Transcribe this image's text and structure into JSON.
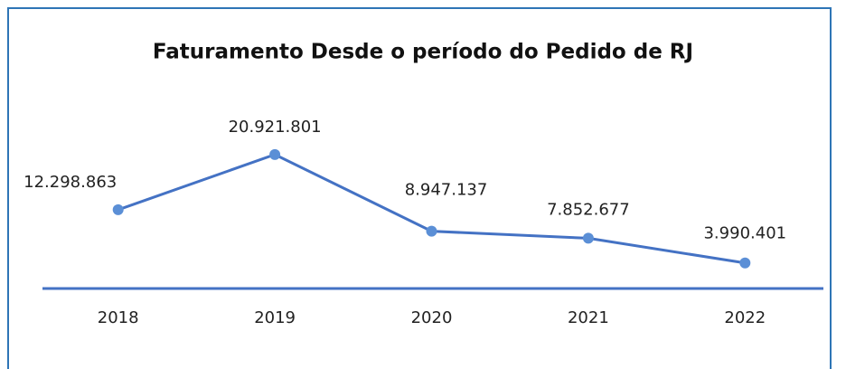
{
  "chart_data": {
    "type": "line",
    "title": "Faturamento Desde o período do Pedido de RJ",
    "categories": [
      "2018",
      "2019",
      "2020",
      "2021",
      "2022"
    ],
    "values": [
      12298863,
      20921801,
      8947137,
      7852677,
      3990401
    ],
    "value_labels": [
      "12.298.863",
      "20.921.801",
      "8.947.137",
      "7.852.677",
      "3.990.401"
    ],
    "color": "#4472c4",
    "ylim": [
      0,
      25000000
    ]
  }
}
